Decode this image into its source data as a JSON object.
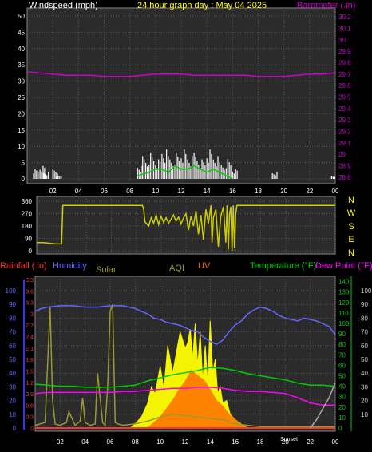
{
  "header": {
    "windspeed_label": "Windspeed (mph)",
    "graph_title": "24 hour graph day : May 04 2025",
    "barometer_label": "Barometer (.in)"
  },
  "bottom_header": {
    "rainfall_label": "Rainfall (.in)",
    "humidity_label": "Humidity",
    "solar_label": "Solar",
    "aqi_label": "AQI",
    "uv_label": "UV",
    "temperature_label": "Temperature (°F)",
    "dewpoint_label": "Dew Point (°F)"
  },
  "time_ticks": [
    "02",
    "04",
    "06",
    "08",
    "10",
    "12",
    "14",
    "16",
    "18",
    "20",
    "22",
    "00"
  ],
  "bottom_time_ticks": [
    "02",
    "04",
    "06",
    "08",
    "10",
    "12",
    "14",
    "16",
    "18",
    "20",
    "22",
    "00"
  ],
  "sun_markers": [
    "Sunset",
    "Sunset"
  ],
  "colors": {
    "windspeed": "#ffffff",
    "wind_avg": "#00cc00",
    "barometer": "#cc00cc",
    "direction": "#cccc00",
    "humidity": "#6666ff",
    "rain_axis": "#ff3333",
    "solar": "#ffff00",
    "aqi": "#999933",
    "uv": "#ff6600",
    "temperature": "#00cc00",
    "dewpoint": "#ff00ff",
    "grid": "#555555"
  },
  "chart_data": [
    {
      "type": "line",
      "id": "wind-baro",
      "x_unit": "hour",
      "xlim": [
        0,
        24
      ],
      "ylabel": "Windspeed (mph)",
      "ylim": [
        0,
        50
      ],
      "yticks": [
        0,
        5,
        10,
        15,
        20,
        25,
        30,
        35,
        40,
        45,
        50
      ],
      "ylabel_right": "Barometer (.in)",
      "ylim_right": [
        28.75,
        30.25
      ],
      "yticks_right": [
        "28.8",
        "28.9",
        "29",
        "29.1",
        "29.2",
        "29.3",
        "29.4",
        "29.5",
        "29.6",
        "29.7",
        "29.8",
        "29.9",
        "30",
        "30.1",
        "30.2"
      ],
      "series": [
        {
          "name": "Windspeed",
          "axis": "left",
          "x": [
            0.5,
            1.0,
            1.3,
            2.0,
            2.3,
            3.0,
            8.6,
            9.0,
            9.5,
            10.0,
            10.5,
            11.0,
            11.5,
            12.0,
            12.5,
            13.0,
            13.5,
            14.0,
            14.5,
            15.0,
            15.5,
            16.0,
            19.1,
            23.6
          ],
          "y": [
            3,
            4,
            2,
            3,
            1,
            0,
            4,
            7,
            8,
            6,
            9,
            7,
            8,
            9,
            7,
            8,
            6,
            9,
            7,
            5,
            6,
            3,
            2,
            1
          ]
        },
        {
          "name": "Average wind",
          "axis": "left",
          "x": [
            8.6,
            9.5,
            10.0,
            10.5,
            11.0,
            11.5,
            12.0,
            12.5,
            13.0,
            13.5,
            14.0,
            14.5,
            15.0,
            15.5,
            16.0
          ],
          "y": [
            1,
            2,
            3,
            3,
            2,
            4,
            3,
            3,
            4,
            3,
            2,
            3,
            2,
            1,
            0
          ]
        },
        {
          "name": "Barometer",
          "axis": "right",
          "x": [
            0,
            1,
            2,
            3,
            4,
            5,
            6,
            7,
            8,
            9,
            10,
            11,
            12,
            13,
            14,
            15,
            16,
            17,
            18,
            19,
            20,
            21,
            22,
            23,
            24
          ],
          "y": [
            29.72,
            29.71,
            29.7,
            29.69,
            29.69,
            29.69,
            29.68,
            29.68,
            29.68,
            29.69,
            29.7,
            29.7,
            29.7,
            29.69,
            29.69,
            29.69,
            29.69,
            29.69,
            29.68,
            29.68,
            29.68,
            29.69,
            29.7,
            29.7,
            29.71
          ]
        }
      ]
    },
    {
      "type": "line",
      "id": "wind-direction",
      "x_unit": "hour",
      "xlim": [
        0,
        24
      ],
      "ylim": [
        0,
        360
      ],
      "yticks": [
        0,
        90,
        180,
        270,
        360
      ],
      "compass_labels": [
        "N",
        "W",
        "S",
        "E",
        "N"
      ],
      "series": [
        {
          "name": "Direction",
          "x": [
            0,
            0.5,
            1,
            1.5,
            2.0,
            2.1,
            8.5,
            8.6,
            8.7,
            9.0,
            9.2,
            9.4,
            9.6,
            9.8,
            10.0,
            10.2,
            10.4,
            10.6,
            10.8,
            11.0,
            11.2,
            11.4,
            11.6,
            11.8,
            12.0,
            12.2,
            12.4,
            12.6,
            12.8,
            13.0,
            13.2,
            13.4,
            13.6,
            13.8,
            14.0,
            14.1,
            14.2,
            14.4,
            14.6,
            14.8,
            15.0,
            15.2,
            15.3,
            15.4,
            15.5,
            15.6,
            15.7,
            15.8,
            15.9,
            16.0,
            16.1,
            16.3,
            24
          ],
          "y": [
            60,
            60,
            55,
            50,
            50,
            330,
            330,
            300,
            210,
            180,
            240,
            200,
            260,
            190,
            250,
            205,
            240,
            200,
            230,
            260,
            215,
            245,
            195,
            240,
            270,
            150,
            250,
            180,
            290,
            120,
            260,
            80,
            300,
            200,
            330,
            60,
            240,
            300,
            30,
            250,
            320,
            60,
            330,
            10,
            260,
            320,
            0,
            330,
            20,
            270,
            330,
            330,
            330
          ]
        }
      ]
    },
    {
      "type": "line",
      "id": "multi-sensor",
      "x_unit": "hour",
      "xlim": [
        0,
        24
      ],
      "humidity_axis": {
        "label": "Humidity",
        "ylim": [
          0,
          100
        ],
        "yticks": [
          0,
          10,
          20,
          30,
          40,
          50,
          60,
          70,
          80,
          90,
          100
        ]
      },
      "rain_axis": {
        "label": "Rainfall (.in)",
        "ylim": [
          0,
          3.9
        ],
        "yticks": [
          "0",
          "0.3",
          "0.6",
          "0.9",
          "1.2",
          "1.5",
          "1.8",
          "2.1",
          "2.4",
          "2.7",
          "3",
          "3.3",
          "3.6",
          "3.9"
        ]
      },
      "temp_axis": {
        "label": "Temperature (°F)",
        "ylim": [
          0,
          145
        ],
        "yticks": [
          0,
          10,
          20,
          30,
          40,
          50,
          60,
          70,
          80,
          90,
          100,
          110,
          120,
          130,
          140
        ]
      },
      "far_axis": {
        "label": "",
        "ylim": [
          0,
          100
        ],
        "yticks": [
          10,
          20,
          30,
          40,
          50,
          60,
          70,
          80,
          90,
          100
        ]
      },
      "series": [
        {
          "name": "Humidity",
          "axis": "humidity",
          "x": [
            0,
            0.5,
            1,
            2,
            3,
            4,
            5,
            6,
            7,
            8,
            8.5,
            9,
            9.5,
            10,
            10.5,
            11,
            11.5,
            12,
            12.5,
            13,
            13.5,
            14,
            14.5,
            15,
            15.5,
            16,
            16.5,
            17,
            17.5,
            18,
            18.5,
            19,
            19.5,
            20,
            20.5,
            21,
            21.5,
            22,
            22.5,
            23,
            23.5,
            24
          ],
          "y": [
            85,
            87,
            88,
            89,
            89,
            88,
            88,
            89,
            89,
            87,
            85,
            83,
            80,
            79,
            77,
            76,
            75,
            73,
            71,
            70,
            66,
            63,
            61,
            64,
            70,
            75,
            78,
            83,
            86,
            88,
            87,
            85,
            82,
            80,
            79,
            78,
            80,
            79,
            78,
            76,
            74,
            68
          ]
        },
        {
          "name": "Rainfall",
          "axis": "rain",
          "x": [
            0,
            24
          ],
          "y": [
            0,
            0
          ]
        },
        {
          "name": "Solar",
          "axis": "humidity",
          "x": [
            7.6,
            8,
            8.5,
            9,
            9.3,
            9.6,
            10,
            10.3,
            10.6,
            11,
            11.3,
            11.6,
            12,
            12.2,
            12.4,
            12.6,
            12.8,
            13,
            13.2,
            13.4,
            13.6,
            13.8,
            14,
            14.2,
            14.4,
            14.6,
            14.8,
            15,
            15.3,
            15.6,
            16,
            16.3,
            16.6,
            17
          ],
          "y": [
            0,
            3,
            8,
            18,
            30,
            25,
            45,
            28,
            60,
            40,
            55,
            70,
            58,
            62,
            72,
            50,
            76,
            45,
            70,
            34,
            60,
            32,
            78,
            40,
            50,
            25,
            30,
            18,
            20,
            10,
            6,
            4,
            2,
            0
          ]
        },
        {
          "name": "AQI",
          "axis": "humidity",
          "x": [
            0,
            0.8,
            1.2,
            1.4,
            1.6,
            2,
            2.5,
            2.7,
            3.2,
            3.6,
            3.8,
            4.0,
            4.4,
            4.8,
            5.0,
            5.4,
            5.6,
            5.8,
            6.0,
            6.2,
            6.4,
            6.6,
            7.0,
            8,
            9,
            10,
            11,
            12,
            13,
            14,
            15,
            16,
            17,
            18,
            24
          ],
          "y": [
            2,
            4,
            88,
            20,
            3,
            2,
            4,
            12,
            2,
            5,
            22,
            4,
            2,
            3,
            40,
            4,
            2,
            30,
            85,
            90,
            4,
            3,
            2,
            3,
            5,
            8,
            10,
            9,
            8,
            7,
            6,
            3,
            2,
            1,
            1
          ]
        },
        {
          "name": "UV",
          "axis": "humidity",
          "x": [
            9,
            9.5,
            10,
            10.5,
            11,
            11.5,
            12,
            12.5,
            13,
            13.5,
            14,
            14.5,
            15,
            15.5,
            16,
            16.5,
            17
          ],
          "y": [
            0,
            4,
            8,
            14,
            20,
            28,
            34,
            42,
            38,
            35,
            28,
            20,
            16,
            10,
            6,
            2,
            0
          ]
        },
        {
          "name": "Temperature",
          "axis": "temp",
          "x": [
            0,
            1,
            2,
            3,
            4,
            5,
            6,
            7,
            8,
            9,
            10,
            11,
            12,
            13,
            14,
            15,
            16,
            17,
            18,
            19,
            20,
            21,
            22,
            23,
            24
          ],
          "y": [
            42,
            41,
            40,
            40,
            39,
            39,
            39,
            40,
            41,
            45,
            48,
            51,
            53,
            55,
            58,
            57,
            55,
            52,
            50,
            48,
            46,
            43,
            41,
            41,
            40
          ]
        },
        {
          "name": "Dew Point",
          "axis": "temp",
          "x": [
            0,
            1,
            2,
            3,
            4,
            5,
            6,
            7,
            8,
            9,
            10,
            11,
            12,
            13,
            14,
            15,
            16,
            17,
            18,
            19,
            20,
            21,
            22,
            23,
            24
          ],
          "y": [
            33,
            34,
            34,
            34,
            34,
            34,
            34,
            35,
            35,
            36,
            37,
            38,
            38,
            39,
            39,
            38,
            36,
            35,
            35,
            34,
            33,
            29,
            24,
            22,
            22
          ]
        },
        {
          "name": "Far axis",
          "axis": "far",
          "x": [
            22,
            22.5,
            23,
            23.5,
            24
          ],
          "y": [
            0,
            6,
            14,
            22,
            33
          ]
        }
      ]
    }
  ]
}
